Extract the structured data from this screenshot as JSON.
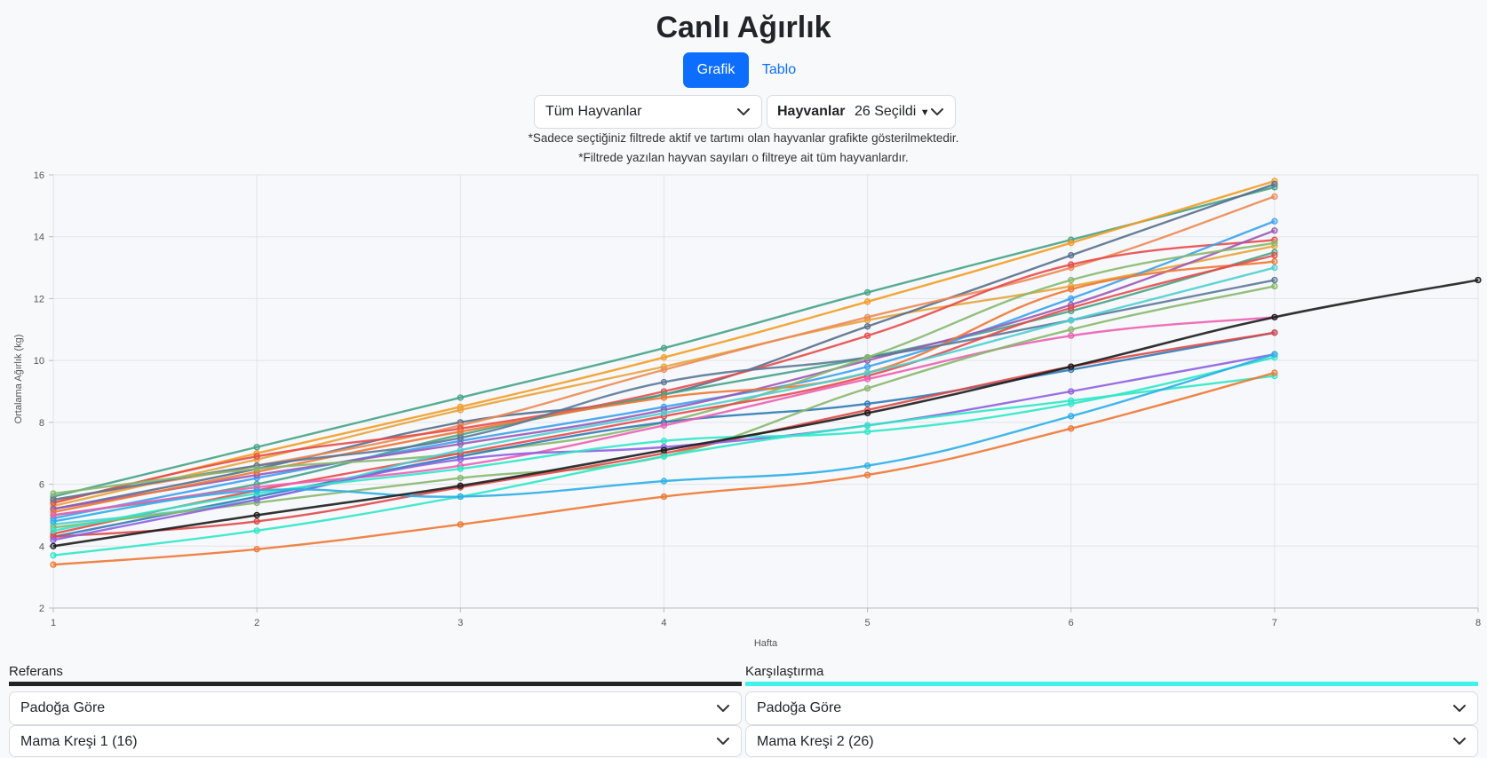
{
  "page": {
    "title": "Canlı Ağırlık",
    "tabs": [
      "Grafik",
      "Tablo"
    ],
    "active_tab": "Grafik",
    "animal_filter": "Tüm Hayvanlar",
    "group_filter_label": "Hayvanlar",
    "group_filter_value": "26 Seçildi",
    "note1": "*Sadece seçtiğiniz filtrede aktif ve tartımı olan hayvanlar grafikte gösterilmektedir.",
    "note2": "*Filtrede yazılan hayvan sayıları o filtreye ait tüm hayvanlardır."
  },
  "reference": {
    "label": "Referans",
    "mode": "Padoğa Göre",
    "group": "Mama Kreşi 1 (16)",
    "color": "#222222"
  },
  "comparison": {
    "label": "Karşılaştırma",
    "mode": "Padoğa Göre",
    "group": "Mama Kreşi 2 (26)",
    "color": "#3ff2ec"
  },
  "chart_data": {
    "type": "line",
    "xlabel": "Hafta",
    "ylabel": "Ortalama Ağırlık (kg)",
    "xlim": [
      1,
      8
    ],
    "ylim": [
      2,
      16
    ],
    "x_ticks": [
      1,
      2,
      3,
      4,
      5,
      6,
      7,
      8
    ],
    "y_ticks": [
      2,
      4,
      6,
      8,
      10,
      12,
      14,
      16
    ],
    "grid": true,
    "reference_series": {
      "color": "#1c1c1c",
      "x": [
        1,
        2,
        3,
        4,
        5,
        6,
        7,
        8
      ],
      "values": [
        4.0,
        5.0,
        5.95,
        7.1,
        8.3,
        9.8,
        11.4,
        12.6
      ]
    },
    "series": [
      {
        "color": "#44a386",
        "values": [
          5.6,
          7.2,
          8.8,
          10.4,
          12.2,
          13.9,
          15.6
        ]
      },
      {
        "color": "#f39c24",
        "values": [
          5.4,
          7.0,
          8.5,
          10.1,
          11.9,
          13.8,
          15.8
        ]
      },
      {
        "color": "#e8a33a",
        "values": [
          5.3,
          6.8,
          8.4,
          9.8,
          11.3,
          12.4,
          13.7
        ]
      },
      {
        "color": "#586f8c",
        "values": [
          5.2,
          6.5,
          8.0,
          8.9,
          11.1,
          13.4,
          15.7
        ]
      },
      {
        "color": "#ec8a55",
        "values": [
          5.5,
          6.6,
          7.9,
          9.7,
          11.4,
          13.0,
          15.3
        ]
      },
      {
        "color": "#e84a4a",
        "values": [
          5.4,
          6.9,
          7.8,
          9.0,
          10.8,
          13.1,
          13.9
        ]
      },
      {
        "color": "#44a386",
        "values": [
          5.0,
          6.0,
          7.6,
          8.9,
          10.1,
          11.6,
          13.5
        ]
      },
      {
        "color": "#3aa1f0",
        "values": [
          4.9,
          6.2,
          7.4,
          8.5,
          9.8,
          12.0,
          14.5
        ]
      },
      {
        "color": "#9b59b6",
        "values": [
          5.2,
          6.3,
          7.3,
          8.4,
          10.0,
          11.8,
          14.2
        ]
      },
      {
        "color": "#ee7733",
        "values": [
          5.1,
          6.4,
          7.7,
          8.8,
          9.6,
          12.3,
          13.2
        ]
      },
      {
        "color": "#5b7898",
        "values": [
          5.5,
          6.6,
          7.5,
          9.3,
          10.1,
          11.3,
          12.6
        ]
      },
      {
        "color": "#86b86d",
        "values": [
          5.7,
          6.5,
          7.0,
          8.0,
          10.1,
          12.6,
          13.8
        ]
      },
      {
        "color": "#2e7bb6",
        "values": [
          4.3,
          5.6,
          6.9,
          8.0,
          8.6,
          9.7,
          10.9
        ]
      },
      {
        "color": "#e84a4a",
        "values": [
          4.4,
          5.8,
          7.0,
          8.2,
          9.5,
          11.7,
          13.4
        ]
      },
      {
        "color": "#ec5fb2",
        "values": [
          5.0,
          5.9,
          6.6,
          7.9,
          9.4,
          10.8,
          11.4
        ]
      },
      {
        "color": "#4ccfd1",
        "values": [
          4.7,
          5.5,
          7.1,
          8.3,
          9.6,
          11.3,
          13.0
        ]
      },
      {
        "color": "#86b86d",
        "values": [
          4.6,
          5.4,
          6.2,
          6.9,
          9.1,
          11.0,
          12.4
        ]
      },
      {
        "color": "#e04848",
        "values": [
          4.3,
          4.8,
          5.9,
          7.0,
          8.4,
          9.8,
          10.9
        ]
      },
      {
        "color": "#8e5fe0",
        "values": [
          4.2,
          5.5,
          6.8,
          7.2,
          7.9,
          9.0,
          10.2
        ]
      },
      {
        "color": "#2ee8c8",
        "values": [
          4.5,
          5.7,
          6.5,
          7.4,
          7.7,
          8.6,
          10.1
        ]
      },
      {
        "color": "#2ee8c8",
        "values": [
          3.7,
          4.5,
          5.6,
          6.9,
          7.9,
          8.7,
          9.5
        ]
      },
      {
        "color": "#2aaee8",
        "values": [
          4.8,
          5.8,
          5.6,
          6.1,
          6.6,
          8.2,
          10.2
        ]
      },
      {
        "color": "#ee7733",
        "values": [
          3.4,
          3.9,
          4.7,
          5.6,
          6.3,
          7.8,
          9.6
        ]
      }
    ]
  }
}
